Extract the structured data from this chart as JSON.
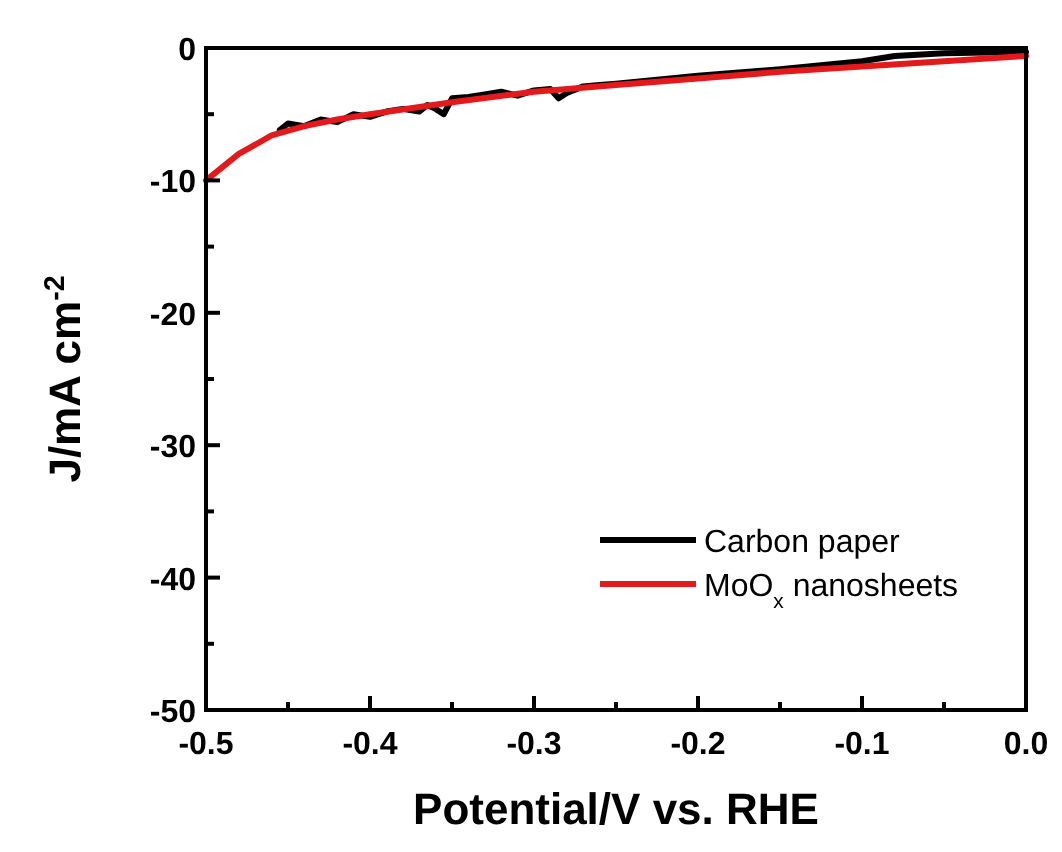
{
  "chart_data": {
    "type": "line",
    "xlabel": "Potential/V vs. RHE",
    "ylabel": "J/mA cm$^{-2}$",
    "xlim": [
      -0.5,
      0.0
    ],
    "ylim": [
      -50,
      0
    ],
    "xticks": [
      {
        "value": -0.5,
        "label": "-0.5"
      },
      {
        "value": -0.45,
        "label": null
      },
      {
        "value": -0.4,
        "label": "-0.4"
      },
      {
        "value": -0.35,
        "label": null
      },
      {
        "value": -0.3,
        "label": "-0.3"
      },
      {
        "value": -0.25,
        "label": null
      },
      {
        "value": -0.2,
        "label": "-0.2"
      },
      {
        "value": -0.15,
        "label": null
      },
      {
        "value": -0.1,
        "label": "-0.1"
      },
      {
        "value": -0.05,
        "label": null
      },
      {
        "value": 0.0,
        "label": "0.0"
      }
    ],
    "yticks": [
      {
        "value": -50,
        "label": "-50"
      },
      {
        "value": -45,
        "label": null
      },
      {
        "value": -40,
        "label": "-40"
      },
      {
        "value": -35,
        "label": null
      },
      {
        "value": -30,
        "label": "-30"
      },
      {
        "value": -25,
        "label": null
      },
      {
        "value": -20,
        "label": "-20"
      },
      {
        "value": -15,
        "label": null
      },
      {
        "value": -10,
        "label": "-10"
      },
      {
        "value": -5,
        "label": null
      },
      {
        "value": 0,
        "label": "0"
      }
    ],
    "legend": "bottom right",
    "line_style": "solid",
    "marker": "none",
    "grid": false,
    "series": [
      {
        "name": "Carbon paper",
        "color": "#000000",
        "x": [
          -0.455,
          -0.45,
          -0.44,
          -0.43,
          -0.42,
          -0.41,
          -0.4,
          -0.39,
          -0.38,
          -0.37,
          -0.365,
          -0.36,
          -0.355,
          -0.35,
          -0.34,
          -0.33,
          -0.32,
          -0.31,
          -0.3,
          -0.29,
          -0.285,
          -0.28,
          -0.27,
          -0.26,
          -0.25,
          -0.2,
          -0.15,
          -0.1,
          -0.08,
          -0.05,
          0.0
        ],
        "values": [
          -6.2,
          -5.7,
          -5.9,
          -5.4,
          -5.6,
          -5.0,
          -5.2,
          -4.8,
          -4.6,
          -4.8,
          -4.3,
          -4.6,
          -5.0,
          -3.8,
          -3.7,
          -3.5,
          -3.3,
          -3.6,
          -3.2,
          -3.1,
          -3.8,
          -3.4,
          -2.9,
          -2.8,
          -2.7,
          -2.1,
          -1.6,
          -1.0,
          -0.6,
          -0.4,
          -0.3
        ]
      },
      {
        "name": "MoO$_{x}$ nanosheets",
        "color": "#e31a1c",
        "x": [
          -0.5,
          -0.48,
          -0.46,
          -0.44,
          -0.42,
          -0.4,
          -0.35,
          -0.3,
          -0.25,
          -0.2,
          -0.15,
          -0.1,
          -0.05,
          0.0
        ],
        "values": [
          -10,
          -8.0,
          -6.6,
          -5.9,
          -5.4,
          -5.0,
          -4.1,
          -3.3,
          -2.8,
          -2.3,
          -1.8,
          -1.4,
          -1.0,
          -0.6
        ]
      }
    ]
  }
}
